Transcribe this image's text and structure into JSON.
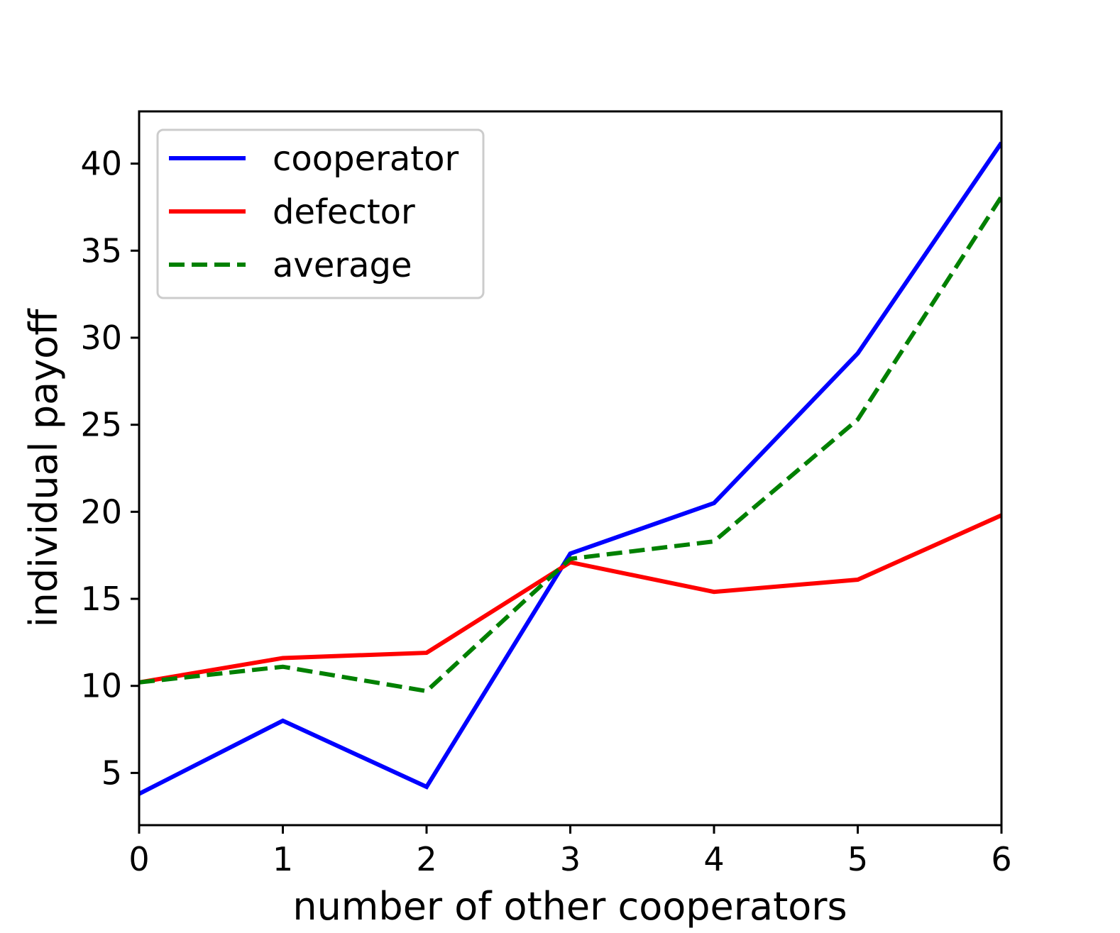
{
  "chart_data": {
    "type": "line",
    "title": "",
    "xlabel": "number of other cooperators",
    "ylabel": "individual payoff",
    "x": [
      0,
      1,
      2,
      3,
      4,
      5,
      6
    ],
    "xlim": [
      0,
      6
    ],
    "ylim": [
      2,
      43
    ],
    "xticks": [
      0,
      1,
      2,
      3,
      4,
      5,
      6
    ],
    "yticks": [
      5,
      10,
      15,
      20,
      25,
      30,
      35,
      40
    ],
    "grid": false,
    "legend_position": "top-left",
    "series": [
      {
        "name": "cooperator",
        "color": "#0000ff",
        "dash": "solid",
        "values": [
          3.8,
          8.0,
          4.2,
          17.6,
          20.5,
          29.1,
          41.2
        ]
      },
      {
        "name": "defector",
        "color": "#ff0000",
        "dash": "solid",
        "values": [
          10.2,
          11.6,
          11.9,
          17.1,
          15.4,
          16.1,
          19.8
        ]
      },
      {
        "name": "average",
        "color": "#008000",
        "dash": "dashed",
        "values": [
          10.2,
          11.1,
          9.7,
          17.3,
          18.3,
          25.3,
          38.1
        ]
      }
    ]
  }
}
